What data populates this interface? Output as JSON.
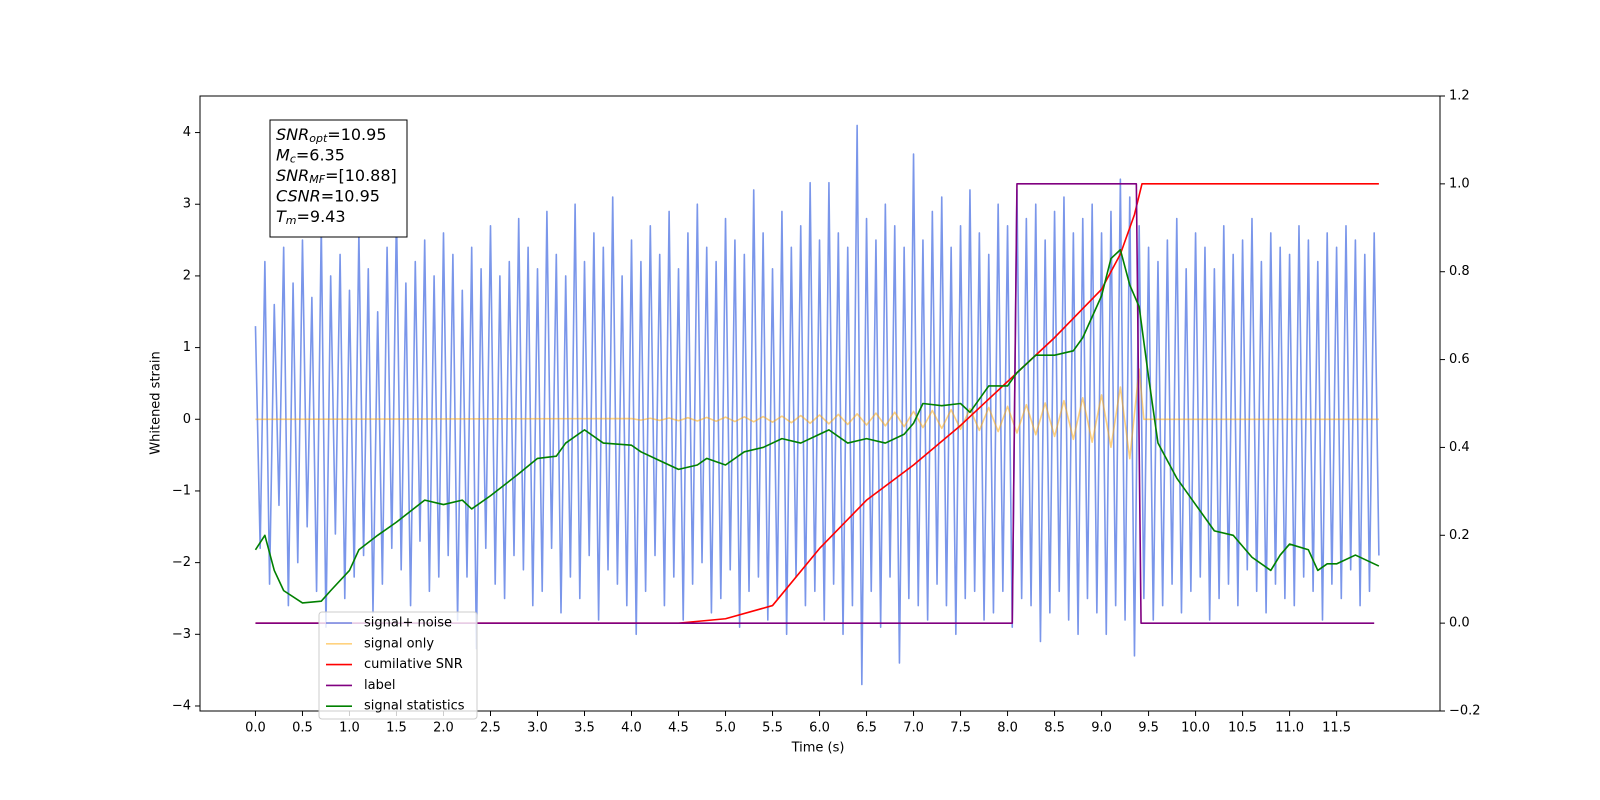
{
  "chart_data": {
    "type": "line",
    "xlabel": "Time (s)",
    "ylabel": "Whitened strain",
    "xlim": [
      -0.59,
      12.6
    ],
    "ylim": [
      -4.07,
      4.51
    ],
    "y2lim": [
      -0.2,
      1.2
    ],
    "xticks": [
      {
        "value": 0,
        "label": "0.0"
      },
      0.5,
      {
        "value": 1,
        "label": "1.0"
      },
      1.5,
      {
        "value": 2,
        "label": "2.0"
      },
      2.5,
      {
        "value": 3,
        "label": "3.0"
      },
      3.5,
      {
        "value": 4,
        "label": "4.0"
      },
      4.5,
      {
        "value": 5,
        "label": "5.0"
      },
      5.5,
      {
        "value": 6,
        "label": "6.0"
      },
      6.5,
      {
        "value": 7,
        "label": "7.0"
      },
      7.5,
      {
        "value": 8,
        "label": "8.0"
      },
      8.5,
      {
        "value": 9,
        "label": "9.0"
      },
      9.5,
      {
        "value": 10,
        "label": "10.0"
      },
      10.5,
      {
        "value": 11,
        "label": "11.0"
      },
      11.5
    ],
    "yticks": [
      {
        "value": -4,
        "label": "−4"
      },
      {
        "value": -3,
        "label": "−3"
      },
      {
        "value": -2,
        "label": "−2"
      },
      {
        "value": -1,
        "label": "−1"
      },
      0,
      1,
      2,
      3,
      4
    ],
    "y2ticks": [
      {
        "value": -0.2,
        "label": "−0.2"
      },
      {
        "value": 0,
        "label": "0.0"
      },
      0.2,
      0.4,
      0.6,
      0.8,
      {
        "value": 1,
        "label": "1.0"
      },
      1.2
    ],
    "legend": "lower left",
    "annotation": [
      {
        "symbol": "SNR",
        "sub": "opt",
        "text": "=10.95"
      },
      {
        "symbol": "M",
        "sub": "c",
        "text": "=6.35"
      },
      {
        "symbol": "SNR",
        "sub": "MF",
        "text": "=[10.88]"
      },
      {
        "symbol": "CSNR",
        "sub": "",
        "text": "=10.95"
      },
      {
        "symbol": "T",
        "sub": "m",
        "text": "=9.43"
      }
    ],
    "x": [
      0,
      0.05,
      0.1,
      0.15,
      0.2,
      0.25,
      0.3,
      0.35,
      0.4,
      0.45,
      0.5,
      0.55,
      0.6,
      0.65,
      0.7,
      0.75,
      0.8,
      0.85,
      0.9,
      0.95,
      1,
      1.05,
      1.1,
      1.15,
      1.2,
      1.25,
      1.3,
      1.35,
      1.4,
      1.45,
      1.5,
      1.55,
      1.6,
      1.65,
      1.7,
      1.75,
      1.8,
      1.85,
      1.9,
      1.95,
      2,
      2.05,
      2.1,
      2.15,
      2.2,
      2.25,
      2.3,
      2.35,
      2.4,
      2.45,
      2.5,
      2.55,
      2.6,
      2.65,
      2.7,
      2.75,
      2.8,
      2.85,
      2.9,
      2.95,
      3,
      3.05,
      3.1,
      3.15,
      3.2,
      3.25,
      3.3,
      3.35,
      3.4,
      3.45,
      3.5,
      3.55,
      3.6,
      3.65,
      3.7,
      3.75,
      3.8,
      3.85,
      3.9,
      3.95,
      4,
      4.05,
      4.1,
      4.15,
      4.2,
      4.25,
      4.3,
      4.35,
      4.4,
      4.45,
      4.5,
      4.55,
      4.6,
      4.65,
      4.7,
      4.75,
      4.8,
      4.85,
      4.9,
      4.95,
      5,
      5.05,
      5.1,
      5.15,
      5.2,
      5.25,
      5.3,
      5.35,
      5.4,
      5.45,
      5.5,
      5.55,
      5.6,
      5.65,
      5.7,
      5.75,
      5.8,
      5.85,
      5.9,
      5.95,
      6,
      6.05,
      6.1,
      6.15,
      6.2,
      6.25,
      6.3,
      6.35,
      6.4,
      6.45,
      6.5,
      6.55,
      6.6,
      6.65,
      6.7,
      6.75,
      6.8,
      6.85,
      6.9,
      6.95,
      7,
      7.05,
      7.1,
      7.15,
      7.2,
      7.25,
      7.3,
      7.35,
      7.4,
      7.45,
      7.5,
      7.55,
      7.6,
      7.65,
      7.7,
      7.75,
      7.8,
      7.85,
      7.9,
      7.95,
      8,
      8.05,
      8.1,
      8.15,
      8.2,
      8.25,
      8.3,
      8.35,
      8.4,
      8.45,
      8.5,
      8.55,
      8.6,
      8.65,
      8.7,
      8.75,
      8.8,
      8.85,
      8.9,
      8.95,
      9,
      9.05,
      9.1,
      9.15,
      9.2,
      9.25,
      9.3,
      9.35,
      9.4,
      9.45,
      9.5,
      9.55,
      9.6,
      9.65,
      9.7,
      9.75,
      9.8,
      9.85,
      9.9,
      9.95,
      10,
      10.05,
      10.1,
      10.15,
      10.2,
      10.25,
      10.3,
      10.35,
      10.4,
      10.45,
      10.5,
      10.55,
      10.6,
      10.65,
      10.7,
      10.75,
      10.8,
      10.85,
      10.9,
      10.95,
      11,
      11.05,
      11.1,
      11.15,
      11.2,
      11.25,
      11.3,
      11.35,
      11.4,
      11.45,
      11.5,
      11.55,
      11.6,
      11.65,
      11.7,
      11.75,
      11.8,
      11.85,
      11.9,
      11.95
    ],
    "series": [
      {
        "name": "signal+ noise",
        "color": "#4169e1",
        "alpha": 0.7,
        "values": [
          1.3,
          -1.8,
          2.2,
          -2.3,
          1.6,
          -1.2,
          2.4,
          -2.6,
          1.9,
          -2.0,
          2.5,
          -1.5,
          1.7,
          -2.4,
          2.7,
          -2.9,
          2.0,
          -1.6,
          2.3,
          -2.5,
          1.8,
          -2.2,
          2.6,
          -1.9,
          2.1,
          -2.7,
          1.5,
          -2.3,
          2.4,
          -1.8,
          2.9,
          -2.1,
          1.9,
          -2.6,
          2.2,
          -1.7,
          2.5,
          -2.4,
          2.0,
          -2.2,
          2.6,
          -1.9,
          2.3,
          -2.8,
          1.8,
          -2.2,
          2.4,
          -3.2,
          2.1,
          -1.8,
          2.7,
          -2.3,
          2.0,
          -2.5,
          2.2,
          -1.9,
          2.8,
          -2.1,
          2.4,
          -2.6,
          2.1,
          -2.4,
          2.9,
          -1.8,
          2.3,
          -2.7,
          2.0,
          -2.2,
          3.0,
          -2.5,
          2.2,
          -1.9,
          2.6,
          -2.8,
          2.4,
          -2.1,
          3.1,
          -2.3,
          2.0,
          -2.6,
          2.5,
          -3.0,
          2.2,
          -2.4,
          2.7,
          -1.9,
          2.3,
          -2.6,
          2.9,
          -2.2,
          2.1,
          -2.8,
          2.6,
          -2.3,
          3.0,
          -2.0,
          2.4,
          -2.7,
          2.2,
          -2.5,
          2.8,
          -2.1,
          2.5,
          -2.9,
          2.3,
          -2.4,
          3.2,
          -2.2,
          2.6,
          -2.8,
          2.1,
          -2.5,
          2.9,
          -3.0,
          2.4,
          -2.2,
          2.7,
          -2.6,
          3.3,
          -2.4,
          2.5,
          -2.8,
          3.3,
          -2.3,
          2.6,
          -3.0,
          2.4,
          -2.6,
          4.1,
          -3.7,
          2.8,
          -2.4,
          2.5,
          -2.9,
          3.0,
          -2.2,
          2.7,
          -3.4,
          2.4,
          -2.5,
          3.7,
          -2.6,
          2.5,
          -2.8,
          2.9,
          -2.3,
          3.1,
          -2.6,
          2.4,
          -3.0,
          2.7,
          -2.5,
          3.2,
          -2.4,
          2.6,
          -2.8,
          2.3,
          -2.7,
          3.0,
          -2.4,
          2.7,
          -2.9,
          3.2,
          -2.5,
          2.8,
          -2.6,
          3.0,
          -3.1,
          2.5,
          -2.7,
          2.9,
          -2.4,
          3.1,
          -2.8,
          2.6,
          -3.0,
          2.8,
          -2.5,
          3.0,
          -2.7,
          2.6,
          -3.0,
          2.9,
          -2.6,
          3.35,
          -2.8,
          3.1,
          -3.3,
          2.7,
          -2.5,
          2.4,
          -2.8,
          2.2,
          -2.6,
          2.5,
          -2.3,
          2.8,
          -2.7,
          2.1,
          -2.4,
          2.6,
          -2.2,
          2.4,
          -2.8,
          2.1,
          -2.5,
          2.7,
          -2.3,
          2.3,
          -2.6,
          2.5,
          -2.1,
          2.8,
          -2.4,
          2.2,
          -2.7,
          2.6,
          -2.3,
          2.4,
          -2.5,
          2.3,
          -2.6,
          2.7,
          -2.2,
          2.5,
          -2.4,
          2.2,
          -2.8,
          2.6,
          -2.3,
          2.4,
          -2.5,
          2.7,
          -2.1,
          2.5,
          -2.6,
          2.3,
          -2.4,
          2.6,
          -1.9
        ]
      },
      {
        "name": "signal only",
        "color": "#ffa500",
        "alpha": 0.5,
        "x": [
          0,
          4.0,
          4.1,
          4.2,
          4.3,
          4.4,
          4.5,
          4.6,
          4.7,
          4.8,
          4.9,
          5.0,
          5.1,
          5.2,
          5.3,
          5.4,
          5.5,
          5.6,
          5.7,
          5.8,
          5.9,
          6.0,
          6.1,
          6.2,
          6.3,
          6.4,
          6.5,
          6.6,
          6.7,
          6.8,
          6.9,
          7.0,
          7.1,
          7.2,
          7.3,
          7.4,
          7.5,
          7.6,
          7.7,
          7.8,
          7.9,
          8.0,
          8.1,
          8.2,
          8.3,
          8.4,
          8.5,
          8.6,
          8.7,
          8.8,
          8.9,
          9.0,
          9.1,
          9.2,
          9.3,
          9.4,
          9.45,
          11.95
        ],
        "values": [
          0,
          0.01,
          -0.012,
          0.014,
          -0.016,
          0.018,
          -0.02,
          0.022,
          -0.024,
          0.026,
          -0.028,
          0.03,
          -0.032,
          0.034,
          -0.036,
          0.038,
          -0.04,
          0.044,
          -0.048,
          0.052,
          -0.056,
          0.06,
          -0.064,
          0.068,
          -0.072,
          0.076,
          -0.08,
          0.086,
          -0.092,
          0.098,
          -0.104,
          0.11,
          -0.116,
          0.122,
          -0.128,
          0.134,
          -0.14,
          0.148,
          -0.156,
          0.164,
          -0.172,
          0.18,
          -0.192,
          0.204,
          -0.216,
          0.228,
          -0.24,
          0.26,
          -0.28,
          0.3,
          -0.32,
          0.34,
          -0.39,
          0.45,
          -0.55,
          0.7,
          0,
          0
        ]
      },
      {
        "name": "cumilative SNR",
        "color": "#ff0000",
        "alpha": 1,
        "axis": "y2",
        "x": [
          0,
          4.5,
          5.0,
          5.5,
          6.0,
          6.5,
          7.0,
          7.5,
          8.0,
          8.5,
          9.0,
          9.2,
          9.35,
          9.43,
          11.95
        ],
        "values": [
          0,
          0,
          0.01,
          0.04,
          0.17,
          0.28,
          0.36,
          0.45,
          0.55,
          0.65,
          0.76,
          0.84,
          0.93,
          1.0,
          1.0
        ]
      },
      {
        "name": "label",
        "color": "#800080",
        "alpha": 1,
        "axis": "y2",
        "x": [
          0,
          8.05,
          8.1,
          9.37,
          9.42,
          11.9
        ],
        "values": [
          0,
          0,
          1,
          1,
          0,
          0
        ]
      },
      {
        "name": "signal statistics",
        "color": "#008000",
        "alpha": 1,
        "axis": "y2",
        "x": [
          0,
          0.1,
          0.2,
          0.3,
          0.5,
          0.7,
          0.8,
          1.0,
          1.1,
          1.3,
          1.5,
          1.8,
          2.0,
          2.2,
          2.3,
          2.5,
          2.8,
          3.0,
          3.2,
          3.3,
          3.5,
          3.7,
          4.0,
          4.1,
          4.3,
          4.5,
          4.7,
          4.8,
          5.0,
          5.2,
          5.4,
          5.6,
          5.8,
          6.0,
          6.1,
          6.3,
          6.5,
          6.7,
          6.9,
          7.0,
          7.1,
          7.3,
          7.5,
          7.6,
          7.8,
          8.0,
          8.1,
          8.3,
          8.5,
          8.7,
          8.8,
          9.0,
          9.1,
          9.2,
          9.3,
          9.4,
          9.5,
          9.6,
          9.8,
          10.0,
          10.2,
          10.4,
          10.6,
          10.8,
          10.9,
          11.0,
          11.2,
          11.3,
          11.4,
          11.5,
          11.7,
          11.95
        ],
        "values": [
          0.167,
          0.2,
          0.12,
          0.074,
          0.046,
          0.05,
          0.074,
          0.12,
          0.167,
          0.2,
          0.23,
          0.28,
          0.27,
          0.28,
          0.26,
          0.29,
          0.34,
          0.375,
          0.38,
          0.41,
          0.44,
          0.41,
          0.405,
          0.39,
          0.37,
          0.35,
          0.36,
          0.375,
          0.36,
          0.39,
          0.4,
          0.42,
          0.41,
          0.43,
          0.44,
          0.41,
          0.42,
          0.41,
          0.43,
          0.455,
          0.5,
          0.495,
          0.5,
          0.48,
          0.54,
          0.54,
          0.57,
          0.61,
          0.61,
          0.62,
          0.65,
          0.745,
          0.83,
          0.85,
          0.77,
          0.72,
          0.56,
          0.41,
          0.33,
          0.27,
          0.21,
          0.2,
          0.15,
          0.12,
          0.155,
          0.18,
          0.167,
          0.12,
          0.135,
          0.135,
          0.155,
          0.13
        ]
      }
    ]
  }
}
